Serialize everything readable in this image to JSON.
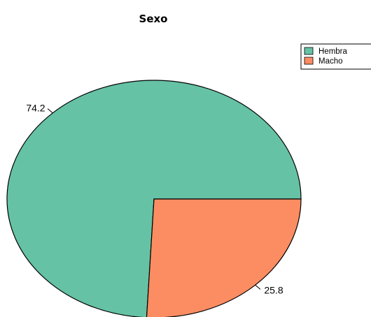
{
  "chart_data": {
    "type": "pie",
    "title": "Sexo",
    "slices": [
      {
        "label": "Hembra",
        "value": 74.2,
        "color": "#66C2A5"
      },
      {
        "label": "Macho",
        "value": 25.8,
        "color": "#FC8D62"
      }
    ],
    "legend_position": "top-right",
    "start_angle_deg": 0,
    "direction": "counter-clockwise"
  }
}
